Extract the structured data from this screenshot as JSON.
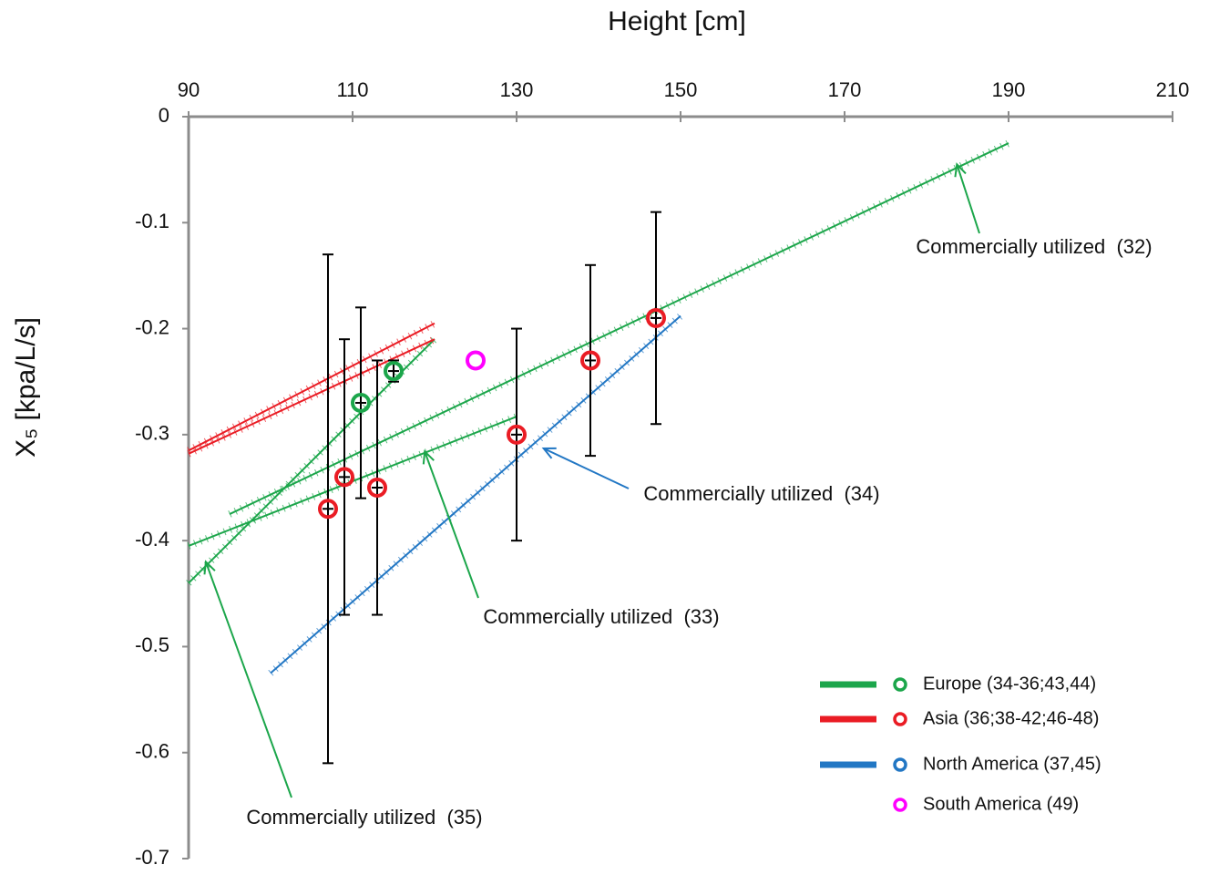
{
  "chart_data": {
    "type": "scatter",
    "title": "Height [cm]",
    "y_label": "X₅ [kpa/L/s]",
    "xlim": [
      90,
      210
    ],
    "xticks": [
      90,
      110,
      130,
      150,
      170,
      190,
      210
    ],
    "ylim": [
      -0.7,
      0
    ],
    "yticks": [
      0,
      -0.1,
      -0.2,
      -0.3,
      -0.4,
      -0.5,
      -0.6,
      -0.7
    ],
    "legend": "bottom-right",
    "series": [
      {
        "name": "Europe (34-36;43,44)",
        "color": "#1ca64b",
        "x": [
          111,
          115
        ],
        "values": [
          -0.27,
          -0.24
        ],
        "errors": [
          0.09,
          0.01
        ],
        "lines": [
          {
            "x": [
              95,
              190
            ],
            "y": [
              -0.375,
              -0.025
            ]
          },
          {
            "x": [
              90,
              130
            ],
            "y": [
              -0.405,
              -0.283
            ]
          },
          {
            "x": [
              90,
              120
            ],
            "y": [
              -0.44,
              -0.21
            ]
          }
        ]
      },
      {
        "name": "Asia (36;38-42;46-48)",
        "color": "#ea1c24",
        "x": [
          107,
          109,
          113,
          130,
          139,
          147
        ],
        "values": [
          -0.37,
          -0.34,
          -0.35,
          -0.3,
          -0.23,
          -0.19
        ],
        "errors": [
          0.24,
          0.13,
          0.12,
          0.1,
          0.09,
          0.1
        ],
        "lines": [
          {
            "x": [
              90,
              120
            ],
            "y": [
              -0.315,
              -0.195
            ]
          },
          {
            "x": [
              90,
              120
            ],
            "y": [
              -0.318,
              -0.21
            ]
          }
        ]
      },
      {
        "name": "North America (37,45)",
        "color": "#2277c4",
        "x": [],
        "values": [],
        "errors": [],
        "lines": [
          {
            "x": [
              100,
              150
            ],
            "y": [
              -0.525,
              -0.188
            ]
          }
        ]
      },
      {
        "name": "South America (49)",
        "color": "#ff00ff",
        "x": [
          125
        ],
        "values": [
          -0.23
        ],
        "errors": [],
        "lines": []
      }
    ],
    "annotations": [
      {
        "text": "Commercially utilized  (32)",
        "x": 183.7,
        "y": -0.045,
        "color": "#1ca64b"
      },
      {
        "text": "Commercially utilized  (34)",
        "x": 133.3,
        "y": -0.313,
        "color": "#2277c4"
      },
      {
        "text": "Commercially utilized  (33)",
        "x": 118.8,
        "y": -0.316,
        "color": "#1ca64b"
      },
      {
        "text": "Commercially utilized  (35)",
        "x": 92.1,
        "y": -0.42,
        "color": "#1ca64b"
      }
    ]
  }
}
